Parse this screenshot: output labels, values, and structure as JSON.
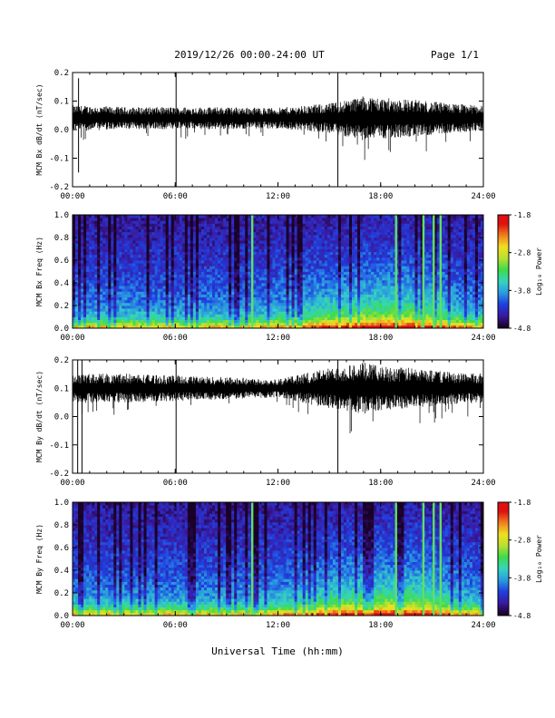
{
  "header": {
    "date_range": "2019/12/26  00:00-24:00 UT",
    "page": "Page 1/1"
  },
  "footer": {
    "xlabel": "Universal Time (hh:mm)"
  },
  "colors": {
    "background": "#ffffff",
    "trace": "#000000",
    "spectrogram_colormap": [
      "#1a0026",
      "#3a1aa0",
      "#1f3fe0",
      "#2a9ce0",
      "#35d4c0",
      "#3ddc4a",
      "#b8e030",
      "#f0e020",
      "#f08020",
      "#e01010"
    ]
  },
  "chart_data": [
    {
      "type": "line",
      "name": "bx-series",
      "ylabel": "MCM Bx dB/dt (nT/sec)",
      "xlim": [
        "00:00",
        "24:00"
      ],
      "ylim": [
        -0.2,
        0.2
      ],
      "x_ticks": [
        "00:00",
        "06:00",
        "12:00",
        "18:00",
        "24:00"
      ],
      "y_ticks": [
        "-0.2",
        "-0.1",
        "0.0",
        "0.1",
        "0.2"
      ],
      "baseline": 0.04,
      "noise_envelope": {
        "hours": [
          0,
          3,
          6,
          9,
          12,
          15,
          17,
          18,
          20,
          22,
          24
        ],
        "amplitude": [
          0.035,
          0.03,
          0.03,
          0.03,
          0.028,
          0.04,
          0.06,
          0.055,
          0.05,
          0.04,
          0.035
        ]
      },
      "spikes": [
        {
          "hour": 0.35,
          "min": -0.15,
          "max": 0.18
        },
        {
          "hour": 6.05,
          "min": -0.2,
          "max": 0.2
        },
        {
          "hour": 15.5,
          "min": -0.2,
          "max": 0.2
        }
      ]
    },
    {
      "type": "heatmap",
      "name": "bx-spectrogram",
      "ylabel": "MCM Bx Freq (Hz)",
      "xlim": [
        "00:00",
        "24:00"
      ],
      "ylim": [
        0.0,
        1.0
      ],
      "x_ticks": [
        "00:00",
        "06:00",
        "12:00",
        "18:00",
        "24:00"
      ],
      "y_ticks": [
        "0.0",
        "0.2",
        "0.4",
        "0.6",
        "0.8",
        "1.0"
      ],
      "colorbar": {
        "label": "Log₁₀ Power",
        "ticks": [
          "-1.8",
          "-2.8",
          "-3.8",
          "-4.8"
        ],
        "range": [
          -4.8,
          -1.8
        ]
      },
      "bright_lines_hours": [
        10.5,
        18.9,
        20.5,
        21.1,
        21.5
      ]
    },
    {
      "type": "line",
      "name": "by-series",
      "ylabel": "MCM By dB/dt (nT/sec)",
      "xlim": [
        "00:00",
        "24:00"
      ],
      "ylim": [
        -0.2,
        0.2
      ],
      "x_ticks": [
        "00:00",
        "06:00",
        "12:00",
        "18:00",
        "24:00"
      ],
      "y_ticks": [
        "-0.2",
        "-0.1",
        "0.0",
        "0.1",
        "0.2"
      ],
      "baseline": 0.1,
      "noise_envelope": {
        "hours": [
          0,
          3,
          6,
          9,
          12,
          15,
          17,
          18,
          20,
          22,
          24
        ],
        "amplitude": [
          0.04,
          0.04,
          0.035,
          0.03,
          0.025,
          0.055,
          0.07,
          0.06,
          0.055,
          0.045,
          0.04
        ]
      },
      "spikes": [
        {
          "hour": 0.3,
          "min": -0.2,
          "max": 0.2
        },
        {
          "hour": 0.55,
          "min": -0.2,
          "max": 0.2
        },
        {
          "hour": 6.05,
          "min": -0.2,
          "max": 0.2
        },
        {
          "hour": 15.5,
          "min": -0.2,
          "max": 0.2
        }
      ]
    },
    {
      "type": "heatmap",
      "name": "by-spectrogram",
      "ylabel": "MCM By Freq (Hz)",
      "xlim": [
        "00:00",
        "24:00"
      ],
      "ylim": [
        0.0,
        1.0
      ],
      "x_ticks": [
        "00:00",
        "06:00",
        "12:00",
        "18:00",
        "24:00"
      ],
      "y_ticks": [
        "0.0",
        "0.2",
        "0.4",
        "0.6",
        "0.8",
        "1.0"
      ],
      "colorbar": {
        "label": "Log₁₀ Power",
        "ticks": [
          "-1.8",
          "-2.8",
          "-3.8",
          "-4.8"
        ],
        "range": [
          -4.8,
          -1.8
        ]
      },
      "bright_lines_hours": [
        10.5,
        18.9,
        20.5,
        21.1,
        21.5
      ]
    }
  ]
}
